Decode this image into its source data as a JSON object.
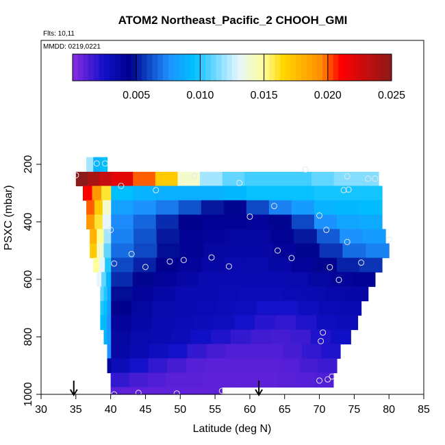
{
  "chart_data": {
    "type": "heatmap",
    "title": "ATOM2 Northeast_Pacific_2 CHOOH_GMI",
    "flights_label": "Flts: 10,11",
    "dates_label": "MMDD: 0219,0221",
    "xlabel": "Latitude (deg N)",
    "ylabel": "PSXC (mbar)",
    "xlim": [
      30,
      85
    ],
    "ylim": [
      1000,
      50
    ],
    "y_reversed": true,
    "x_ticks": [
      30,
      35,
      40,
      45,
      50,
      55,
      60,
      65,
      70,
      75,
      80,
      85
    ],
    "x_tick_labels": [
      "30",
      "35",
      "40",
      "45",
      "50",
      "55",
      "60",
      "65",
      "70",
      "75",
      "80",
      "85"
    ],
    "y_ticks": [
      200,
      400,
      600,
      800,
      1000
    ],
    "y_tick_labels": [
      "200",
      "400",
      "600",
      "800",
      "1000"
    ],
    "colorbar": {
      "min": 0.0,
      "max": 0.025,
      "ticks": [
        0.005,
        0.01,
        0.015,
        0.02,
        0.025
      ],
      "tick_labels": [
        "0.005",
        "0.010",
        "0.015",
        "0.020",
        "0.025"
      ],
      "stops": [
        {
          "v": 0.0,
          "c": "#8a2be2"
        },
        {
          "v": 0.0025,
          "c": "#1010c8"
        },
        {
          "v": 0.0045,
          "c": "#00008b"
        },
        {
          "v": 0.0075,
          "c": "#1e90ff"
        },
        {
          "v": 0.0095,
          "c": "#00bfff"
        },
        {
          "v": 0.013,
          "c": "#e6f5ff"
        },
        {
          "v": 0.015,
          "c": "#ffff99"
        },
        {
          "v": 0.0165,
          "c": "#ffd700"
        },
        {
          "v": 0.0195,
          "c": "#ff8c00"
        },
        {
          "v": 0.021,
          "c": "#ff0000"
        },
        {
          "v": 0.025,
          "c": "#8b1a1a"
        }
      ]
    },
    "main_x_range": [
      40,
      80
    ],
    "pressure_bands": [
      {
        "p_top": 226,
        "p_bot": 275,
        "x_end": 78.5,
        "v": [
          0.022,
          0.02,
          0.017,
          0.014,
          0.012,
          0.011,
          0.0105,
          0.0105,
          0.0105,
          0.011,
          0.0115,
          0.0115
        ]
      },
      {
        "p_top": 275,
        "p_bot": 325,
        "x_end": 79.0,
        "v": [
          0.0095,
          0.009,
          0.0088,
          0.0088,
          0.0088,
          0.0092,
          0.0096,
          0.0096,
          0.0096,
          0.0098,
          0.0098,
          0.0098
        ]
      },
      {
        "p_top": 325,
        "p_bot": 375,
        "x_end": 79.0,
        "v": [
          0.0082,
          0.0076,
          0.007,
          0.0062,
          0.005,
          0.0046,
          0.006,
          0.0072,
          0.008,
          0.009,
          0.0092,
          0.0094
        ]
      },
      {
        "p_top": 375,
        "p_bot": 425,
        "x_end": 79.0,
        "v": [
          0.0074,
          0.0066,
          0.0054,
          0.0044,
          0.0042,
          0.0042,
          0.004,
          0.0046,
          0.006,
          0.0076,
          0.0084,
          0.0086
        ]
      },
      {
        "p_top": 425,
        "p_bot": 475,
        "x_end": 79.5,
        "v": [
          0.0072,
          0.0062,
          0.005,
          0.0042,
          0.004,
          0.0038,
          0.0038,
          0.0042,
          0.005,
          0.0064,
          0.0076,
          0.008
        ]
      },
      {
        "p_top": 475,
        "p_bot": 525,
        "x_end": 80.0,
        "v": [
          0.0068,
          0.006,
          0.0048,
          0.0042,
          0.0038,
          0.0036,
          0.0036,
          0.004,
          0.0046,
          0.0056,
          0.0068,
          0.0072
        ]
      },
      {
        "p_top": 525,
        "p_bot": 575,
        "x_end": 79.0,
        "v": [
          0.006,
          0.0052,
          0.0044,
          0.004,
          0.0036,
          0.0034,
          0.0034,
          0.0036,
          0.004,
          0.0046,
          0.0052,
          0.0056
        ]
      },
      {
        "p_top": 575,
        "p_bot": 625,
        "x_end": 78.0,
        "v": [
          0.0054,
          0.0046,
          0.004,
          0.0036,
          0.0033,
          0.0032,
          0.0032,
          0.0032,
          0.0034,
          0.0038,
          0.004,
          0.0042
        ]
      },
      {
        "p_top": 625,
        "p_bot": 675,
        "x_end": 77.0,
        "v": [
          0.0048,
          0.004,
          0.0036,
          0.0033,
          0.0032,
          0.0031,
          0.003,
          0.003,
          0.0031,
          0.0033,
          0.0035,
          0.0036
        ]
      },
      {
        "p_top": 675,
        "p_bot": 725,
        "x_end": 76.0,
        "v": [
          0.0044,
          0.0038,
          0.0034,
          0.0032,
          0.0031,
          0.003,
          0.0028,
          0.0024,
          0.0024,
          0.0028,
          0.0031,
          0.0032
        ]
      },
      {
        "p_top": 725,
        "p_bot": 775,
        "x_end": 75.5,
        "v": [
          0.004,
          0.0036,
          0.0033,
          0.0031,
          0.003,
          0.0028,
          0.0024,
          0.002,
          0.0018,
          0.0022,
          0.0028,
          0.003
        ]
      },
      {
        "p_top": 775,
        "p_bot": 825,
        "x_end": 74.5,
        "v": [
          0.0038,
          0.0034,
          0.0032,
          0.003,
          0.0026,
          0.0022,
          0.0018,
          0.0015,
          0.0014,
          0.0016,
          0.0022,
          0.0026
        ]
      },
      {
        "p_top": 825,
        "p_bot": 875,
        "x_end": 73.0,
        "v": [
          0.0036,
          0.0032,
          0.0028,
          0.0024,
          0.0018,
          0.0014,
          0.0012,
          0.0012,
          0.0012,
          0.0014,
          0.0018,
          0.0022
        ]
      },
      {
        "p_top": 875,
        "p_bot": 925,
        "x_end": 72.5,
        "v": [
          0.003,
          0.0024,
          0.0018,
          0.0014,
          0.0011,
          0.001,
          0.001,
          0.001,
          0.001,
          0.0011,
          0.0014,
          0.0016
        ]
      },
      {
        "p_top": 925,
        "p_bot": 975,
        "x_end": 72.0,
        "v": [
          0.0018,
          0.0014,
          0.0012,
          0.001,
          0.001,
          0.0009,
          0.0009,
          0.0009,
          0.0009,
          0.001,
          0.0011,
          0.0012
        ]
      },
      {
        "p_top": 975,
        "p_bot": 1000,
        "x_end": 56.0,
        "v": [
          0.001,
          0.0009,
          0.0009,
          0.0009,
          0.0009,
          0.0009,
          0.0009,
          0.0009,
          0.0009,
          0.0009,
          0.0009,
          0.0009
        ]
      }
    ],
    "left_edge_bands": [
      {
        "p_top": 175,
        "p_bot": 226,
        "x_start": 36.5,
        "x_end": 39.5,
        "v": [
          0.012,
          0.009,
          0.0095
        ]
      },
      {
        "p_top": 226,
        "p_bot": 275,
        "x_start": 35.0,
        "x_end": 40.0,
        "v": [
          0.025,
          0.024,
          0.023
        ]
      },
      {
        "p_top": 275,
        "p_bot": 325,
        "x_start": 36.0,
        "x_end": 40.0,
        "v": [
          0.021,
          0.019,
          0.016
        ]
      },
      {
        "p_top": 325,
        "p_bot": 375,
        "x_start": 36.5,
        "x_end": 40.0,
        "v": [
          0.02,
          0.017,
          0.014
        ]
      },
      {
        "p_top": 375,
        "p_bot": 425,
        "x_start": 36.5,
        "x_end": 40.0,
        "v": [
          0.019,
          0.016,
          0.013
        ]
      },
      {
        "p_top": 425,
        "p_bot": 475,
        "x_start": 37.0,
        "x_end": 40.0,
        "v": [
          0.018,
          0.015,
          0.012
        ]
      },
      {
        "p_top": 475,
        "p_bot": 525,
        "x_start": 37.0,
        "x_end": 40.0,
        "v": [
          0.017,
          0.014,
          0.011
        ]
      },
      {
        "p_top": 525,
        "p_bot": 575,
        "x_start": 37.5,
        "x_end": 40.0,
        "v": [
          0.015,
          0.013,
          0.01
        ]
      },
      {
        "p_top": 575,
        "p_bot": 625,
        "x_start": 38.0,
        "x_end": 40.0,
        "v": [
          0.013,
          0.011,
          0.009
        ]
      },
      {
        "p_top": 625,
        "p_bot": 675,
        "x_start": 38.5,
        "x_end": 40.0,
        "v": [
          0.011,
          0.01,
          0.0085
        ]
      },
      {
        "p_top": 675,
        "p_bot": 725,
        "x_start": 38.5,
        "x_end": 40.0,
        "v": [
          0.01,
          0.0095,
          0.008
        ]
      },
      {
        "p_top": 725,
        "p_bot": 775,
        "x_start": 38.5,
        "x_end": 40.0,
        "v": [
          0.0095,
          0.009,
          0.0075
        ]
      },
      {
        "p_top": 775,
        "p_bot": 825,
        "x_start": 39.0,
        "x_end": 40.0,
        "v": [
          0.009,
          0.008
        ]
      },
      {
        "p_top": 825,
        "p_bot": 875,
        "x_start": 39.5,
        "x_end": 40.0,
        "v": [
          0.0075
        ]
      },
      {
        "p_top": 875,
        "p_bot": 925,
        "x_start": 39.5,
        "x_end": 40.0,
        "v": [
          0.004
        ]
      }
    ],
    "sample_points": [
      [
        35.0,
        238
      ],
      [
        38.0,
        197
      ],
      [
        39.2,
        197
      ],
      [
        41.5,
        275
      ],
      [
        46.5,
        290
      ],
      [
        52.0,
        240
      ],
      [
        58.5,
        265
      ],
      [
        68.0,
        218
      ],
      [
        73.5,
        290
      ],
      [
        74.0,
        242
      ],
      [
        74.2,
        288
      ],
      [
        77.0,
        250
      ],
      [
        78.0,
        250
      ],
      [
        63.5,
        345
      ],
      [
        60.0,
        382
      ],
      [
        70.0,
        378
      ],
      [
        40.0,
        428
      ],
      [
        71.0,
        428
      ],
      [
        74.0,
        470
      ],
      [
        80.0,
        462
      ],
      [
        43.0,
        512
      ],
      [
        64.0,
        500
      ],
      [
        66.0,
        526
      ],
      [
        40.5,
        545
      ],
      [
        45.0,
        557
      ],
      [
        48.5,
        538
      ],
      [
        50.5,
        533
      ],
      [
        54.5,
        524
      ],
      [
        57.0,
        555
      ],
      [
        71.5,
        558
      ],
      [
        76.0,
        542
      ],
      [
        72.8,
        602
      ],
      [
        70.5,
        785
      ],
      [
        70.2,
        815
      ],
      [
        70.0,
        952
      ],
      [
        71.2,
        948
      ],
      [
        71.8,
        938
      ],
      [
        40.5,
        1000
      ],
      [
        44.0,
        995
      ],
      [
        49.5,
        997
      ],
      [
        56.0,
        988
      ]
    ],
    "arrows_lat": [
      34.7,
      61.3
    ]
  }
}
